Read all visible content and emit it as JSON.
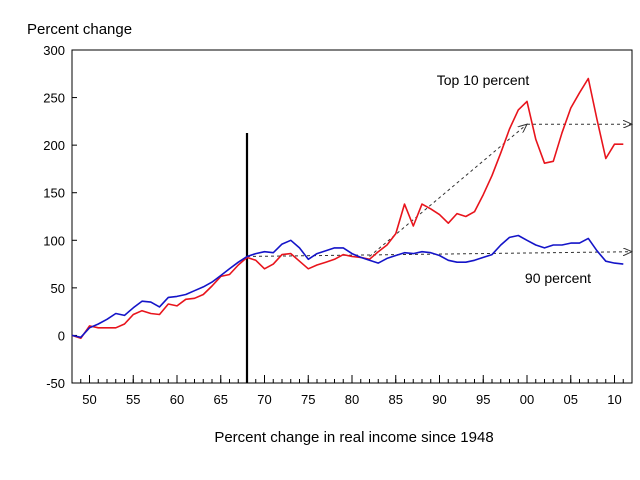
{
  "chart_data": {
    "type": "line",
    "title": "",
    "ylabel": "Percent change",
    "xlabel": "Percent change in real income since 1948",
    "ylim": [
      -50,
      300
    ],
    "xlim": [
      1948,
      2012
    ],
    "yticks": [
      -50,
      0,
      50,
      100,
      150,
      200,
      250,
      300
    ],
    "ytick_labels": [
      "-50",
      "0",
      "50",
      "100",
      "150",
      "200",
      "250",
      "300"
    ],
    "xticks": [
      1950,
      1955,
      1960,
      1965,
      1970,
      1975,
      1980,
      1985,
      1990,
      1995,
      2000,
      2005,
      2010
    ],
    "xtick_labels": [
      "50",
      "55",
      "60",
      "65",
      "70",
      "75",
      "80",
      "85",
      "90",
      "95",
      "00",
      "05",
      "10"
    ],
    "vertical_line_year": 1968,
    "series": [
      {
        "name": "Top 10 percent",
        "color": "#e8141c",
        "x": [
          1948,
          1949,
          1950,
          1951,
          1952,
          1953,
          1954,
          1955,
          1956,
          1957,
          1958,
          1959,
          1960,
          1961,
          1962,
          1963,
          1964,
          1965,
          1966,
          1967,
          1968,
          1969,
          1970,
          1971,
          1972,
          1973,
          1974,
          1975,
          1976,
          1977,
          1978,
          1979,
          1980,
          1981,
          1982,
          1983,
          1984,
          1985,
          1986,
          1987,
          1988,
          1989,
          1990,
          1991,
          1992,
          1993,
          1994,
          1995,
          1996,
          1997,
          1998,
          1999,
          2000,
          2001,
          2002,
          2003,
          2004,
          2005,
          2006,
          2007,
          2008,
          2009,
          2010,
          2011
        ],
        "values": [
          0,
          -3,
          10,
          8,
          8,
          8,
          12,
          22,
          26,
          23,
          22,
          33,
          31,
          38,
          39,
          43,
          52,
          62,
          64,
          74,
          82,
          79,
          70,
          75,
          85,
          86,
          78,
          70,
          74,
          77,
          80,
          85,
          83,
          82,
          80,
          88,
          95,
          107,
          138,
          115,
          138,
          133,
          127,
          118,
          128,
          125,
          130,
          148,
          168,
          192,
          217,
          237,
          246,
          206,
          181,
          183,
          213,
          239,
          255,
          270,
          227,
          186,
          201,
          201
        ]
      },
      {
        "name": "90 percent",
        "color": "#1414c8",
        "x": [
          1948,
          1949,
          1950,
          1951,
          1952,
          1953,
          1954,
          1955,
          1956,
          1957,
          1958,
          1959,
          1960,
          1961,
          1962,
          1963,
          1964,
          1965,
          1966,
          1967,
          1968,
          1969,
          1970,
          1971,
          1972,
          1973,
          1974,
          1975,
          1976,
          1977,
          1978,
          1979,
          1980,
          1981,
          1982,
          1983,
          1984,
          1985,
          1986,
          1987,
          1988,
          1989,
          1990,
          1991,
          1992,
          1993,
          1994,
          1995,
          1996,
          1997,
          1998,
          1999,
          2000,
          2001,
          2002,
          2003,
          2004,
          2005,
          2006,
          2007,
          2008,
          2009,
          2010,
          2011
        ],
        "values": [
          0,
          -2,
          8,
          12,
          17,
          23,
          21,
          29,
          36,
          35,
          30,
          40,
          41,
          43,
          47,
          51,
          56,
          63,
          70,
          77,
          83,
          86,
          88,
          87,
          96,
          100,
          92,
          80,
          86,
          89,
          92,
          92,
          86,
          82,
          79,
          76,
          81,
          84,
          87,
          86,
          88,
          87,
          84,
          79,
          77,
          77,
          79,
          82,
          85,
          95,
          103,
          105,
          100,
          95,
          92,
          95,
          95,
          97,
          97,
          102,
          89,
          78,
          76,
          75
        ]
      }
    ],
    "annotations": [
      {
        "text": "Top 10 percent",
        "series": "Top 10 percent"
      },
      {
        "text": "90 percent",
        "series": "90 percent"
      }
    ],
    "trend_arrows": [
      {
        "from": [
          1982,
          83
        ],
        "to": [
          2000,
          222
        ]
      },
      {
        "from": [
          2000,
          222
        ],
        "to": [
          2012,
          222
        ]
      },
      {
        "from": [
          1968,
          83
        ],
        "to": [
          2012,
          88
        ]
      }
    ]
  }
}
